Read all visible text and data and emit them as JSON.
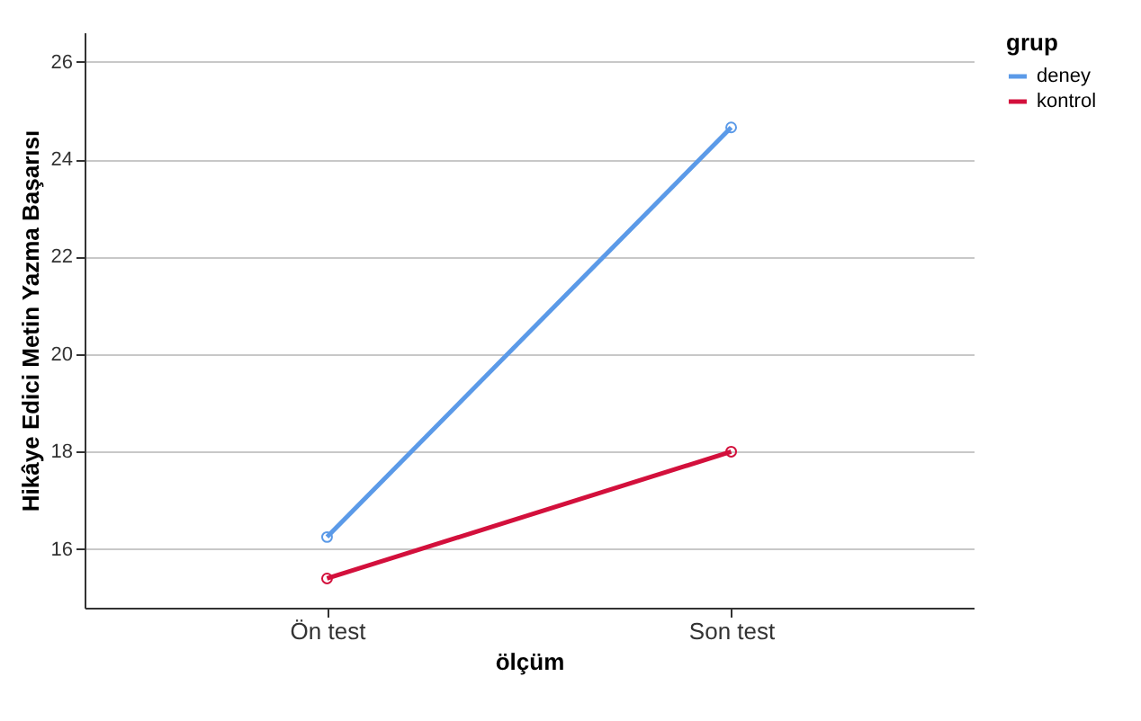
{
  "chart_data": {
    "type": "line",
    "xlabel": "ölçüm",
    "ylabel": "Hikâye Edici Metin Yazma Başarısı",
    "legend_title": "grup",
    "categories": [
      "Ön test",
      "Son test"
    ],
    "series": [
      {
        "name": "deney",
        "color": "#5b9ae8",
        "values": [
          16.25,
          24.65
        ]
      },
      {
        "name": "kontrol",
        "color": "#d3103c",
        "values": [
          15.4,
          18.0
        ]
      }
    ],
    "ylim": [
      14.8,
      26.6
    ],
    "yticks": [
      16,
      18,
      20,
      22,
      24,
      26
    ],
    "grid": "y",
    "legend": "top right",
    "marker": "circle",
    "line_style": "solid"
  }
}
